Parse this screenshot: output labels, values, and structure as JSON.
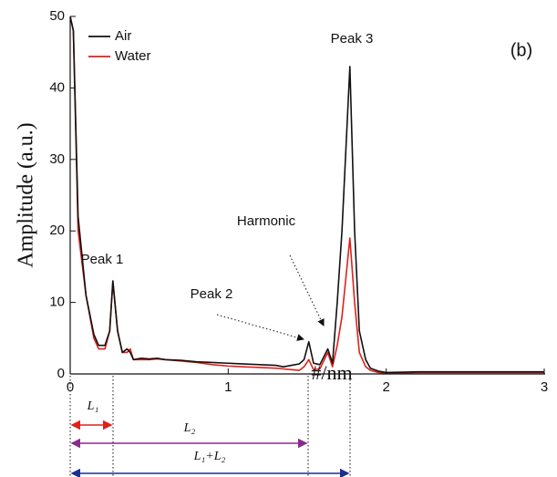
{
  "chart_data": {
    "type": "line",
    "y_label": "Amplitude (a.u.)",
    "x_label": "#/nm",
    "panel_label": "(b)",
    "x": [
      0,
      0.02,
      0.05,
      0.1,
      0.15,
      0.18,
      0.22,
      0.25,
      0.27,
      0.3,
      0.33,
      0.36,
      0.38,
      0.4,
      0.45,
      0.5,
      0.55,
      0.6,
      0.7,
      0.8,
      0.9,
      1.0,
      1.1,
      1.2,
      1.3,
      1.35,
      1.4,
      1.45,
      1.48,
      1.51,
      1.54,
      1.58,
      1.63,
      1.66,
      1.69,
      1.72,
      1.77,
      1.8,
      1.83,
      1.87,
      1.9,
      1.95,
      2.0,
      2.2,
      2.4,
      2.6,
      2.8,
      3.0
    ],
    "series": [
      {
        "name": "Air",
        "color": "#111111",
        "values": [
          50,
          48,
          22,
          11,
          5.5,
          4,
          4,
          6,
          13,
          6,
          3,
          3.5,
          3,
          2,
          2.2,
          2.1,
          2.2,
          2,
          1.9,
          1.7,
          1.6,
          1.5,
          1.4,
          1.3,
          1.2,
          1,
          1.2,
          1.4,
          2,
          4.5,
          1.5,
          1.3,
          3.5,
          1.5,
          10,
          20,
          43,
          20,
          6,
          2,
          0.8,
          0.4,
          0.2,
          0.3,
          0.3,
          0.3,
          0.3,
          0.3
        ]
      },
      {
        "name": "Water",
        "color": "#e0201b",
        "values": [
          50,
          48,
          20,
          11,
          5,
          3.5,
          3.5,
          6,
          13,
          6,
          3,
          3,
          3.5,
          2,
          2,
          2,
          2.1,
          2,
          1.8,
          1.6,
          1.3,
          1.1,
          1,
          0.9,
          0.8,
          0.7,
          0.6,
          0.5,
          1,
          2,
          0.6,
          0.7,
          3,
          1,
          4,
          8,
          19,
          10,
          3,
          1,
          0.5,
          0.2,
          0.1,
          0.2,
          0.2,
          0.2,
          0.2,
          0.2
        ]
      }
    ],
    "xlim": [
      0,
      3
    ],
    "xticks": [
      0,
      1,
      2,
      3
    ],
    "ylim": [
      0,
      50
    ],
    "yticks": [
      0,
      10,
      20,
      30,
      40,
      50
    ],
    "legend": "upper left",
    "annotations": [
      "Peak 1",
      "Peak 2",
      "Harmonic",
      "Peak 3"
    ],
    "spans": [
      "L₁",
      "L₂",
      "L₁+L₂"
    ]
  }
}
